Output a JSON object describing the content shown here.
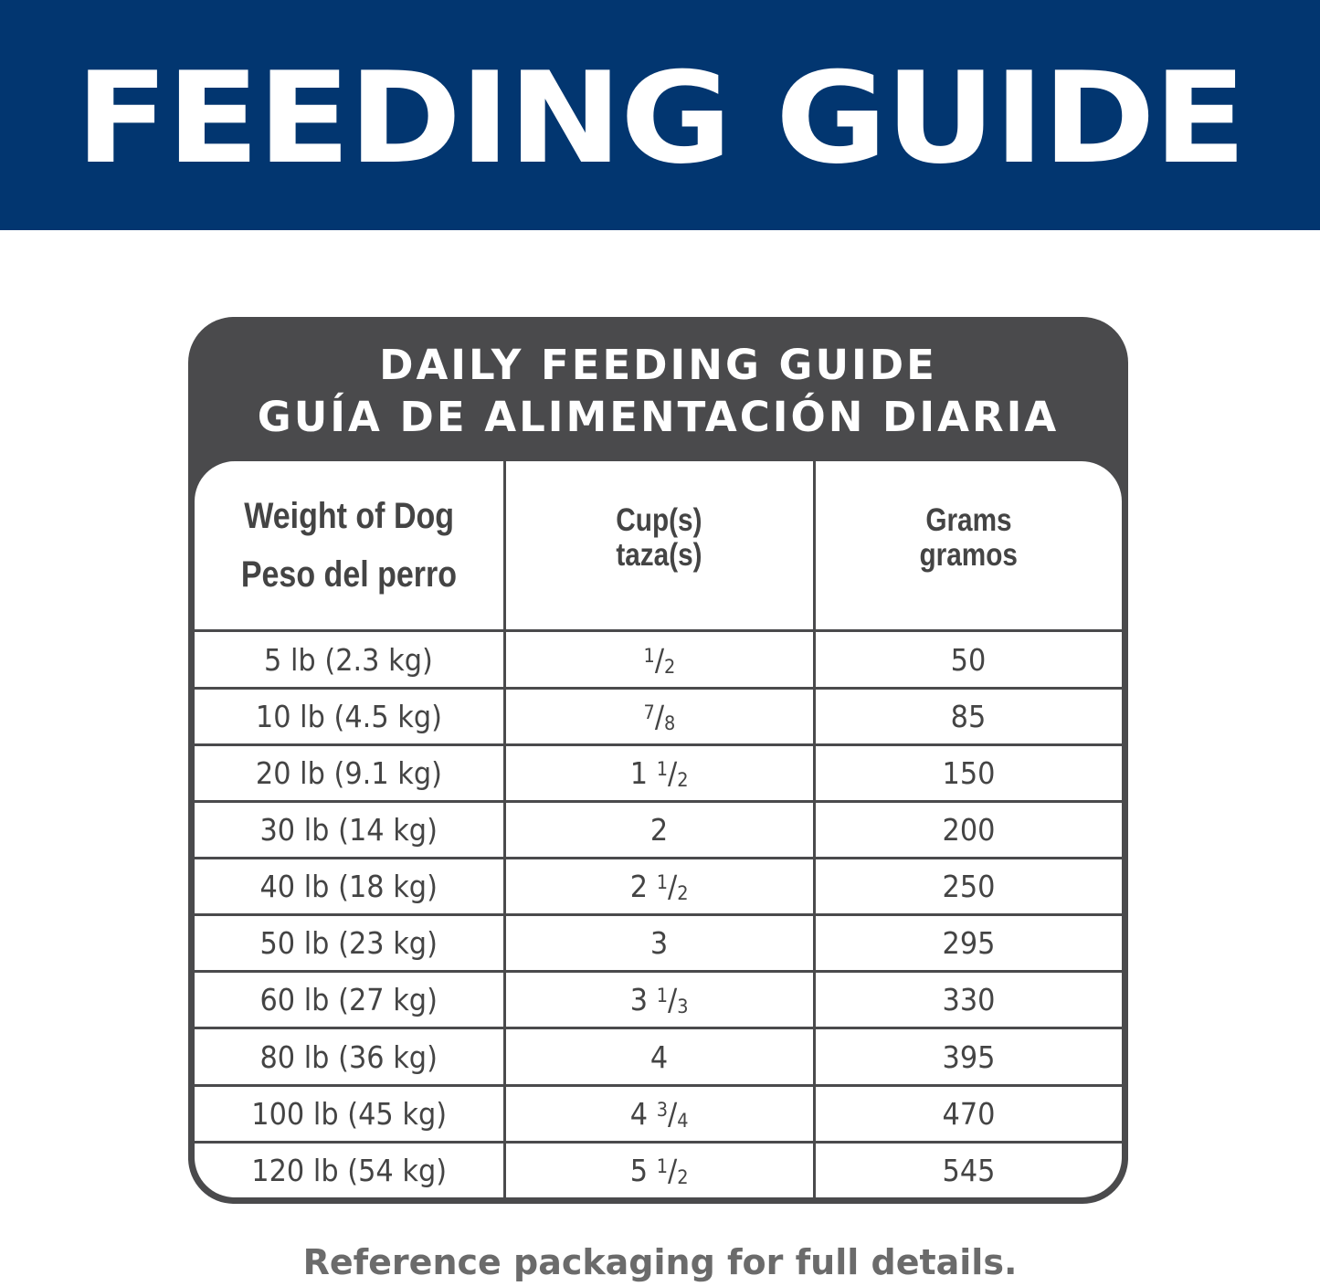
{
  "banner": {
    "title": "FEEDING GUIDE",
    "color": "#023670"
  },
  "card": {
    "title_en": "DAILY FEEDING GUIDE",
    "title_es": "GUÍA DE ALIMENTACIÓN DIARIA",
    "color": "#4a4a4c"
  },
  "table": {
    "headers": [
      {
        "en": "Weight of Dog",
        "es": "Peso del perro"
      },
      {
        "en": "Cup(s)",
        "es": "taza(s)"
      },
      {
        "en": "Grams",
        "es": "gramos"
      }
    ],
    "rows": [
      {
        "weight": "5 lb (2.3 kg)",
        "cups": {
          "whole": "",
          "num": "1",
          "den": "2"
        },
        "grams": "50"
      },
      {
        "weight": "10 lb (4.5 kg)",
        "cups": {
          "whole": "",
          "num": "7",
          "den": "8"
        },
        "grams": "85"
      },
      {
        "weight": "20 lb (9.1 kg)",
        "cups": {
          "whole": "1",
          "num": "1",
          "den": "2"
        },
        "grams": "150"
      },
      {
        "weight": "30 lb (14 kg)",
        "cups": {
          "whole": "2",
          "num": "",
          "den": ""
        },
        "grams": "200"
      },
      {
        "weight": "40 lb (18 kg)",
        "cups": {
          "whole": "2",
          "num": "1",
          "den": "2"
        },
        "grams": "250"
      },
      {
        "weight": "50 lb (23 kg)",
        "cups": {
          "whole": "3",
          "num": "",
          "den": ""
        },
        "grams": "295"
      },
      {
        "weight": "60 lb (27 kg)",
        "cups": {
          "whole": "3",
          "num": "1",
          "den": "3"
        },
        "grams": "330"
      },
      {
        "weight": "80 lb (36 kg)",
        "cups": {
          "whole": "4",
          "num": "",
          "den": ""
        },
        "grams": "395"
      },
      {
        "weight": "100 lb (45 kg)",
        "cups": {
          "whole": "4",
          "num": "3",
          "den": "4"
        },
        "grams": "470"
      },
      {
        "weight": "120 lb (54 kg)",
        "cups": {
          "whole": "5",
          "num": "1",
          "den": "2"
        },
        "grams": "545"
      }
    ]
  },
  "footer": "Reference packaging for full details."
}
